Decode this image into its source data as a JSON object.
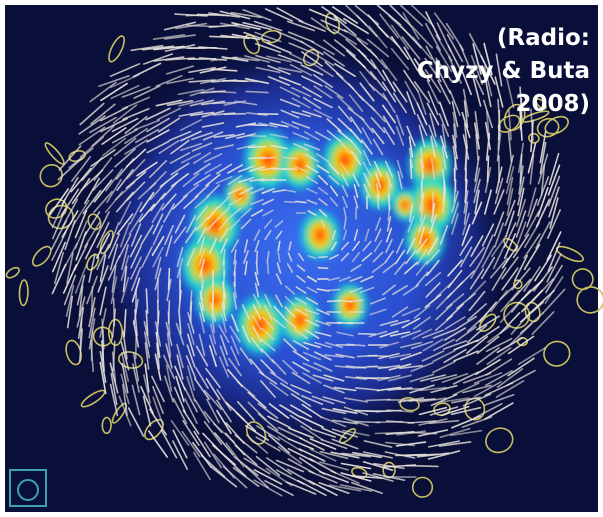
{
  "annotation": {
    "lines": [
      "(Radio:",
      "Chyzy & Buta",
      "2008)"
    ]
  }
}
